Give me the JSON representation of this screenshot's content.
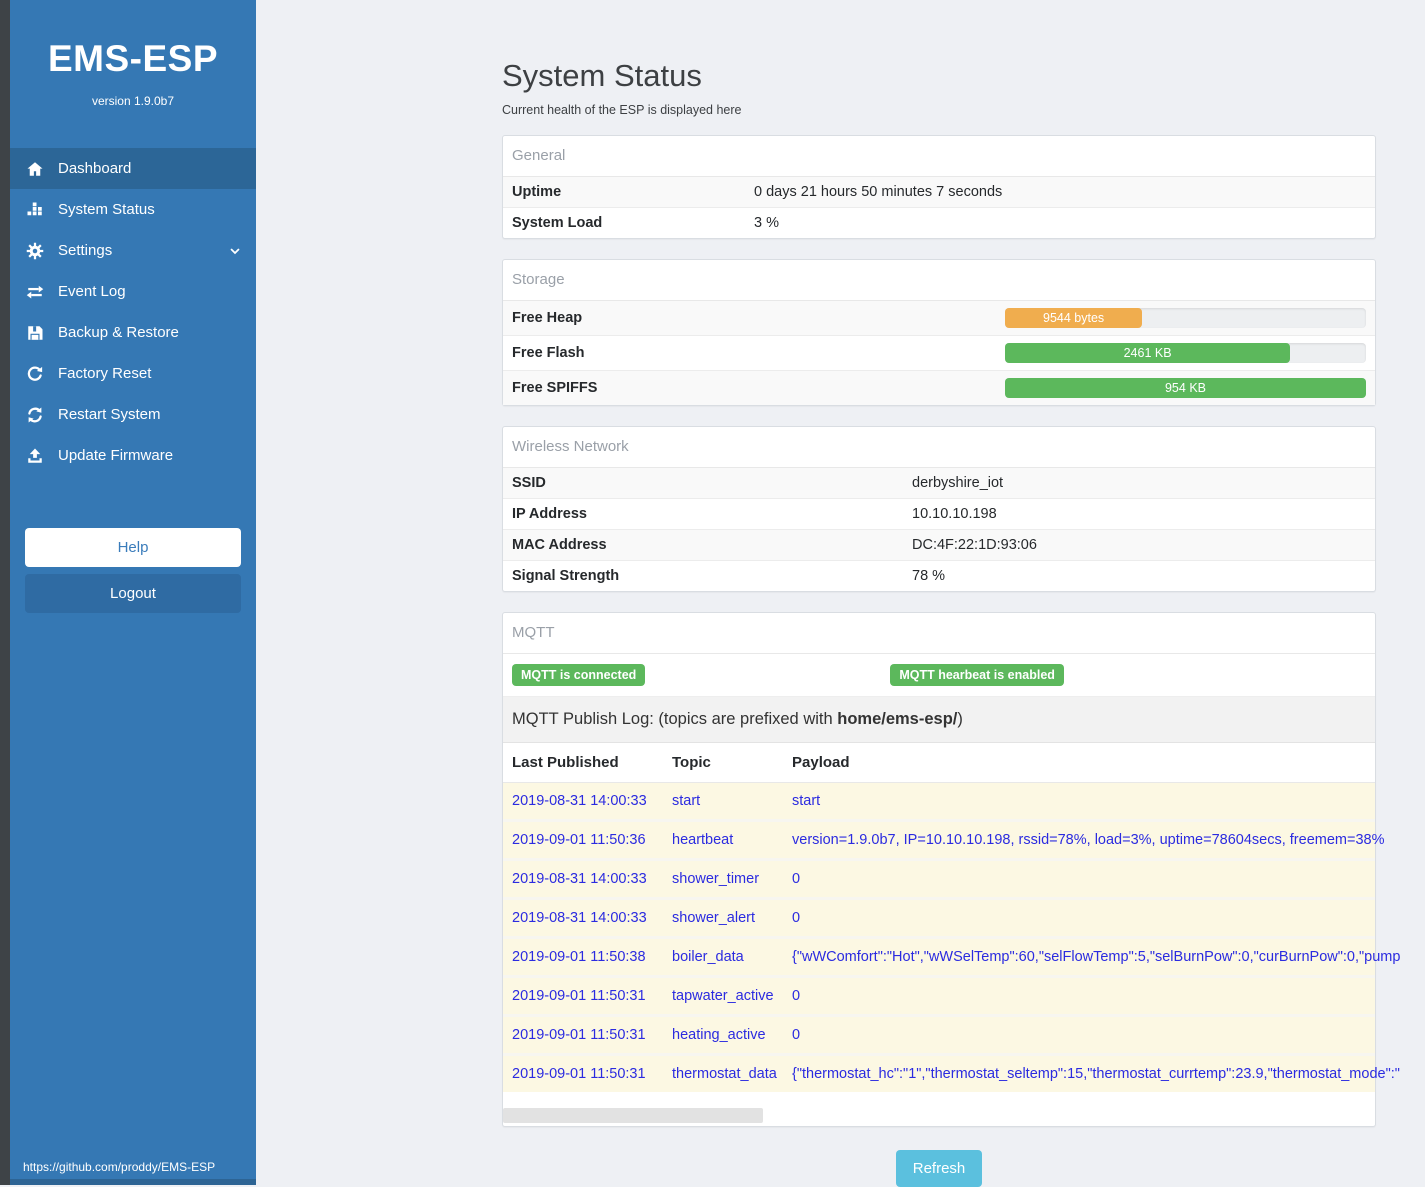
{
  "colors": {
    "sidebar_blue": "#3578b4",
    "sidebar_active_blue": "#2c6697",
    "dark_edge_strip": "#3e4347",
    "badge_green": "#5cb85c",
    "bar_orange": "#f0ad4e",
    "bar_green": "#5cb85c",
    "refresh_cyan": "#5bc0de",
    "log_text_blue": "#2b2be0",
    "log_row_yellow": "#fcf8e3"
  },
  "sidebar": {
    "title": "EMS-ESP",
    "version": "version 1.9.0b7",
    "items": [
      {
        "label": "Dashboard"
      },
      {
        "label": "System Status"
      },
      {
        "label": "Settings"
      },
      {
        "label": "Event Log"
      },
      {
        "label": "Backup & Restore"
      },
      {
        "label": "Factory Reset"
      },
      {
        "label": "Restart System"
      },
      {
        "label": "Update Firmware"
      }
    ],
    "help_label": "Help",
    "logout_label": "Logout",
    "footer_link": "https://github.com/proddy/EMS-ESP"
  },
  "page": {
    "title": "System Status",
    "subtitle": "Current health of the ESP is displayed here",
    "refresh_label": "Refresh"
  },
  "general": {
    "title": "General",
    "rows": [
      [
        "Uptime",
        "0 days 21 hours 50 minutes 7 seconds"
      ],
      [
        "System Load",
        "3 %"
      ]
    ]
  },
  "storage": {
    "title": "Storage",
    "rows": [
      {
        "label": "Free Heap",
        "value": "9544 bytes",
        "percent": 38,
        "color": "#f0ad4e"
      },
      {
        "label": "Free Flash",
        "value": "2461 KB",
        "percent": 79,
        "color": "#5cb85c"
      },
      {
        "label": "Free SPIFFS",
        "value": "954 KB",
        "percent": 100,
        "color": "#5cb85c"
      }
    ]
  },
  "wireless": {
    "title": "Wireless Network",
    "rows": [
      [
        "SSID",
        "derbyshire_iot"
      ],
      [
        "IP Address",
        "10.10.10.198"
      ],
      [
        "MAC Address",
        "DC:4F:22:1D:93:06"
      ],
      [
        "Signal Strength",
        "78 %"
      ]
    ]
  },
  "mqtt": {
    "title": "MQTT",
    "badges": [
      "MQTT is connected",
      "MQTT hearbeat is enabled"
    ],
    "publish_log_prefix": "MQTT Publish Log: (topics are prefixed with ",
    "publish_log_bold": "home/ems-esp/",
    "publish_log_suffix": ")",
    "columns": [
      "Last Published",
      "Topic",
      "Payload"
    ],
    "rows": [
      [
        "2019-08-31 14:00:33",
        "start",
        "start"
      ],
      [
        "2019-09-01 11:50:36",
        "heartbeat",
        "version=1.9.0b7, IP=10.10.10.198, rssid=78%, load=3%, uptime=78604secs, freemem=38%"
      ],
      [
        "2019-08-31 14:00:33",
        "shower_timer",
        "0"
      ],
      [
        "2019-08-31 14:00:33",
        "shower_alert",
        "0"
      ],
      [
        "2019-09-01 11:50:38",
        "boiler_data",
        "{\"wWComfort\":\"Hot\",\"wWSelTemp\":60,\"selFlowTemp\":5,\"selBurnPow\":0,\"curBurnPow\":0,\"pump"
      ],
      [
        "2019-09-01 11:50:31",
        "tapwater_active",
        "0"
      ],
      [
        "2019-09-01 11:50:31",
        "heating_active",
        "0"
      ],
      [
        "2019-09-01 11:50:31",
        "thermostat_data",
        "{\"thermostat_hc\":\"1\",\"thermostat_seltemp\":15,\"thermostat_currtemp\":23.9,\"thermostat_mode\":\""
      ]
    ]
  }
}
